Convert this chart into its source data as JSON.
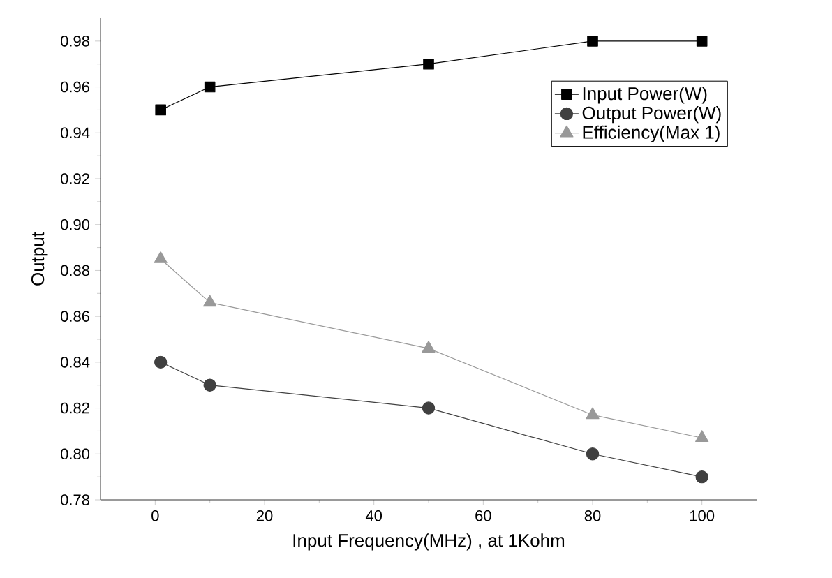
{
  "chart_data": {
    "type": "line",
    "xlabel": "Input Frequency(MHz) , at 1Kohm",
    "ylabel": "Output",
    "x": [
      1,
      10,
      50,
      80,
      100
    ],
    "series": [
      {
        "name": "Input Power(W)",
        "color": "#000000",
        "marker": "square",
        "values": [
          0.95,
          0.96,
          0.97,
          0.98,
          0.98
        ]
      },
      {
        "name": "Output Power(W)",
        "color": "#404040",
        "marker": "circle",
        "values": [
          0.84,
          0.83,
          0.82,
          0.8,
          0.79
        ]
      },
      {
        "name": "Efficiency(Max 1)",
        "color": "#999999",
        "marker": "triangle",
        "values": [
          0.885,
          0.866,
          0.846,
          0.817,
          0.807
        ]
      }
    ],
    "xlim": [
      -10,
      110
    ],
    "ylim": [
      0.78,
      0.99
    ],
    "xticks": [
      0,
      20,
      40,
      60,
      80,
      100
    ],
    "yticks": [
      {
        "value": 0.78,
        "label": "0.78"
      },
      {
        "value": 0.8,
        "label": "0.80"
      },
      {
        "value": 0.82,
        "label": "0.82"
      },
      {
        "value": 0.84,
        "label": "0.84"
      },
      {
        "value": 0.86,
        "label": "0.86"
      },
      {
        "value": 0.88,
        "label": "0.88"
      },
      {
        "value": 0.9,
        "label": "0.90"
      },
      {
        "value": 0.92,
        "label": "0.92"
      },
      {
        "value": 0.94,
        "label": "0.94"
      },
      {
        "value": 0.96,
        "label": "0.96"
      },
      {
        "value": 0.98,
        "label": "0.98"
      }
    ],
    "legend": "top right",
    "line_style": "solid"
  }
}
